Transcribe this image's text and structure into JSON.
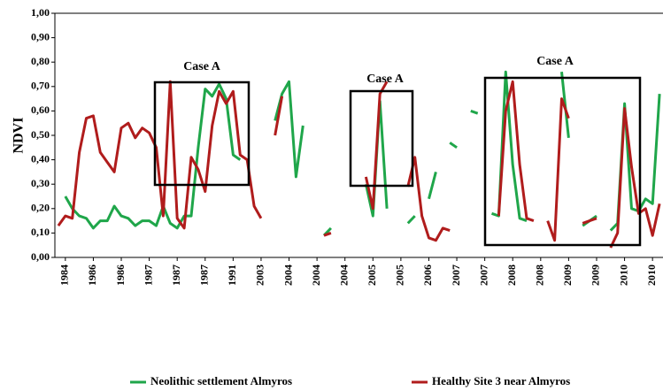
{
  "chart_data": {
    "type": "line",
    "y_label": "NDVI",
    "categories": [
      null,
      "1984",
      null,
      null,
      null,
      "1986",
      null,
      null,
      null,
      "1986",
      null,
      null,
      null,
      "1987",
      null,
      null,
      null,
      "1987",
      null,
      null,
      null,
      "1987",
      null,
      null,
      null,
      "1991",
      null,
      null,
      null,
      "2003",
      null,
      null,
      null,
      "2004",
      null,
      null,
      null,
      "2004",
      null,
      null,
      null,
      "2004",
      null,
      null,
      null,
      "2005",
      null,
      null,
      null,
      "2005",
      null,
      null,
      null,
      "2006",
      null,
      null,
      null,
      "2007",
      null,
      null,
      null,
      "2007",
      null,
      null,
      null,
      "2008",
      null,
      null,
      null,
      "2008",
      null,
      null,
      null,
      "2009",
      null,
      null,
      null,
      "2009",
      null,
      null,
      null,
      "2010",
      null,
      null,
      null,
      "2010",
      null
    ],
    "series": [
      {
        "name": "Neolithic settlement Almyros",
        "color": "#1fa64a",
        "values": [
          null,
          0.25,
          0.2,
          0.17,
          0.16,
          0.12,
          0.15,
          0.15,
          0.21,
          0.17,
          0.16,
          0.13,
          0.15,
          0.15,
          0.13,
          0.21,
          0.14,
          0.12,
          0.17,
          0.17,
          0.45,
          0.69,
          0.66,
          0.71,
          0.65,
          0.42,
          0.4,
          null,
          null,
          null,
          null,
          0.56,
          0.67,
          0.72,
          0.33,
          0.54,
          null,
          null,
          0.09,
          0.12,
          null,
          null,
          null,
          null,
          0.3,
          0.17,
          0.64,
          0.2,
          null,
          null,
          0.14,
          0.17,
          null,
          0.24,
          0.35,
          null,
          0.47,
          0.45,
          null,
          0.6,
          0.59,
          null,
          0.18,
          0.17,
          0.76,
          0.38,
          0.16,
          0.15,
          null,
          null,
          null,
          null,
          0.76,
          0.49,
          null,
          0.13,
          0.15,
          0.17,
          null,
          0.11,
          0.14,
          0.63,
          0.2,
          0.19,
          0.24,
          0.22,
          0.67
        ]
      },
      {
        "name": "Healthy Site 3 near Almyros",
        "color": "#b01c1c",
        "values": [
          0.13,
          0.17,
          0.16,
          0.43,
          0.57,
          0.58,
          0.43,
          0.39,
          0.35,
          0.53,
          0.55,
          0.49,
          0.53,
          0.51,
          0.45,
          0.17,
          0.72,
          0.16,
          0.12,
          0.41,
          0.36,
          0.27,
          0.54,
          0.68,
          0.63,
          0.68,
          0.42,
          0.4,
          0.21,
          0.16,
          null,
          0.5,
          0.66,
          null,
          null,
          null,
          null,
          null,
          0.09,
          0.1,
          null,
          null,
          null,
          null,
          0.33,
          0.2,
          0.67,
          0.72,
          null,
          null,
          0.29,
          0.41,
          0.17,
          0.08,
          0.07,
          0.12,
          0.11,
          null,
          null,
          null,
          null,
          null,
          null,
          0.17,
          0.6,
          0.72,
          0.38,
          0.16,
          0.15,
          null,
          0.15,
          0.07,
          0.65,
          0.57,
          null,
          0.14,
          0.15,
          0.16,
          null,
          0.04,
          0.1,
          0.61,
          0.37,
          0.18,
          0.2,
          0.09,
          0.22
        ]
      }
    ],
    "annotations": [
      "Case A",
      "Case A",
      "Case A"
    ],
    "ylim": [
      0,
      1
    ],
    "yticks": [
      {
        "value": 0,
        "label": "0,00"
      },
      {
        "value": 0.1,
        "label": "0,10"
      },
      {
        "value": 0.2,
        "label": "0,20"
      },
      {
        "value": 0.3,
        "label": "0,30"
      },
      {
        "value": 0.4,
        "label": "0,40"
      },
      {
        "value": 0.5,
        "label": "0,50"
      },
      {
        "value": 0.6,
        "label": "0,60"
      },
      {
        "value": 0.7,
        "label": "0,70"
      },
      {
        "value": 0.8,
        "label": "0,80"
      },
      {
        "value": 0.9,
        "label": "0,90"
      },
      {
        "value": 1,
        "label": "1,00"
      }
    ],
    "grid": false,
    "legend": "bottom"
  }
}
